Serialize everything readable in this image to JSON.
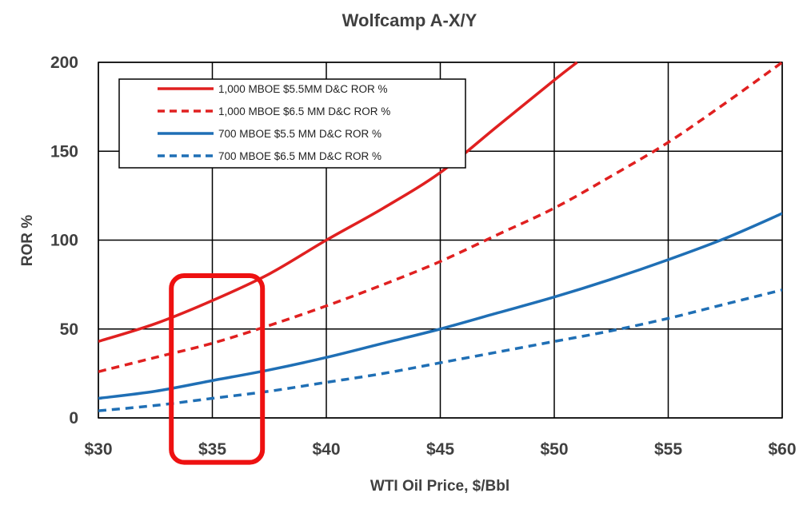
{
  "chart_data": {
    "type": "line",
    "title": "Wolfcamp A-X/Y",
    "xlabel": "WTI Oil Price, $/Bbl",
    "ylabel": "ROR %",
    "xlim": [
      30,
      60
    ],
    "ylim": [
      0,
      200
    ],
    "x_ticks": [
      30,
      35,
      40,
      45,
      50,
      55,
      60
    ],
    "x_tick_labels": [
      "$30",
      "$35",
      "$40",
      "$45",
      "$50",
      "$55",
      "$60"
    ],
    "y_ticks": [
      0,
      50,
      100,
      150,
      200
    ],
    "y_tick_labels": [
      "0",
      "50",
      "100",
      "150",
      "200"
    ],
    "grid": true,
    "legend_position": "top-left",
    "series": [
      {
        "name": "1,000 MBOE $5.5MM D&C ROR %",
        "color": "#e02020",
        "dashed": false,
        "x": [
          30,
          32.5,
          35,
          37.5,
          40,
          42.5,
          45,
          47.5,
          50,
          51
        ],
        "y": [
          43,
          53,
          66,
          81,
          100,
          118,
          138,
          164,
          190,
          200
        ]
      },
      {
        "name": "1,000 MBOE $6.5 MM D&C ROR %",
        "color": "#e02020",
        "dashed": true,
        "x": [
          30,
          32.5,
          35,
          37.5,
          40,
          42.5,
          45,
          47.5,
          50,
          52.5,
          55,
          57.5,
          60
        ],
        "y": [
          26,
          34,
          42,
          52,
          63,
          75,
          88,
          103,
          118,
          136,
          155,
          177,
          200
        ]
      },
      {
        "name": "700 MBOE $5.5 MM D&C ROR %",
        "color": "#1f6fb5",
        "dashed": false,
        "x": [
          30,
          32.5,
          35,
          37.5,
          40,
          42.5,
          45,
          47.5,
          50,
          52.5,
          55,
          57.5,
          60
        ],
        "y": [
          11,
          15,
          21,
          27,
          34,
          42,
          50,
          59,
          68,
          78,
          89,
          101,
          115
        ]
      },
      {
        "name": "700 MBOE $6.5 MM D&C ROR %",
        "color": "#1f6fb5",
        "dashed": true,
        "x": [
          30,
          32.5,
          35,
          37.5,
          40,
          42.5,
          45,
          47.5,
          50,
          52.5,
          55,
          57.5,
          60
        ],
        "y": [
          4,
          7,
          11,
          15,
          20,
          25,
          31,
          37,
          43,
          49,
          56,
          64,
          72
        ]
      }
    ],
    "annotations": [
      {
        "type": "rounded-rectangle",
        "color": "#ee1111",
        "x_range": [
          33.2,
          37.2
        ],
        "y_range": [
          -25,
          80
        ]
      }
    ]
  }
}
